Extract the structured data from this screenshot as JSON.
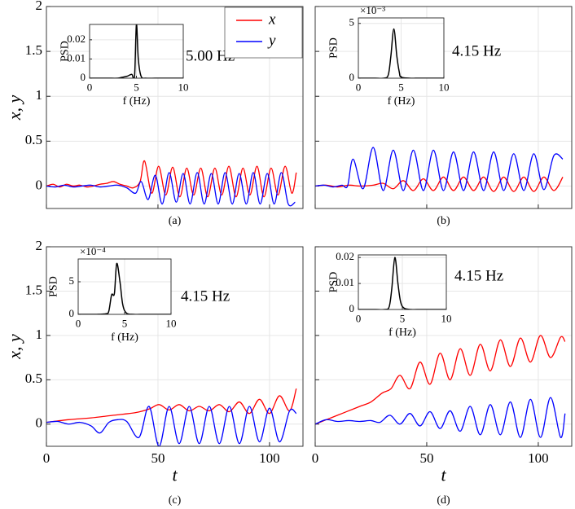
{
  "chart_data": [
    {
      "type": "line",
      "caption": "(a)",
      "annotation": "5.00 Hz",
      "ylabel": "x, y",
      "xlim": [
        0,
        115
      ],
      "xticks": [
        0,
        50,
        100
      ],
      "xtick_labels": false,
      "ylim": [
        -0.25,
        2
      ],
      "yticks": [
        0,
        0.5,
        1,
        1.5,
        2
      ],
      "grid": true,
      "legend": "top-right",
      "series": [
        {
          "name": "x",
          "color": "#ff0000",
          "x": [
            0,
            3,
            6,
            9,
            12,
            15,
            18,
            21,
            24,
            27,
            30,
            33,
            36,
            39,
            42,
            44,
            47.2,
            50.3,
            53.5,
            56.6,
            59.8,
            62.9,
            66,
            69.2,
            72.3,
            75.5,
            78.6,
            81.8,
            85,
            88.1,
            91.2,
            94.4,
            97.5,
            100.7,
            103.8,
            107,
            110,
            112
          ],
          "values": [
            0,
            0.02,
            -0.01,
            0.02,
            0,
            0.01,
            -0.01,
            0,
            0.02,
            0.03,
            0.05,
            0.02,
            0,
            -0.02,
            0.05,
            0.28,
            -0.08,
            0.22,
            -0.1,
            0.21,
            -0.12,
            0.2,
            -0.1,
            0.2,
            -0.12,
            0.2,
            -0.1,
            0.22,
            -0.12,
            0.2,
            -0.1,
            0.22,
            -0.12,
            0.2,
            -0.1,
            0.22,
            -0.08,
            0.15
          ]
        },
        {
          "name": "y",
          "color": "#0000ff",
          "x": [
            0,
            4,
            8,
            12,
            16,
            20,
            24,
            28,
            32,
            36,
            40,
            42.5,
            45.6,
            48.8,
            51.9,
            55,
            58.2,
            61.3,
            64.4,
            67.6,
            70.7,
            73.9,
            77,
            80.1,
            83.3,
            86.4,
            89.6,
            92.7,
            95.8,
            99,
            102.1,
            105.3,
            108.4,
            111.5
          ],
          "values": [
            0,
            -0.01,
            0.01,
            -0.01,
            0,
            0.01,
            -0.01,
            0,
            0.01,
            -0.02,
            -0.08,
            0.05,
            -0.15,
            0.12,
            -0.2,
            0.15,
            -0.18,
            0.14,
            -0.2,
            0.15,
            -0.2,
            0.14,
            -0.2,
            0.15,
            -0.2,
            0.14,
            -0.2,
            0.15,
            -0.2,
            0.14,
            -0.2,
            0.15,
            -0.2,
            -0.18
          ]
        }
      ],
      "inset": {
        "type": "line",
        "xlabel": "f (Hz)",
        "ylabel": "PSD",
        "xlim": [
          0,
          10
        ],
        "xticks": [
          0,
          5,
          10
        ],
        "ylim": [
          0,
          0.028
        ],
        "yticks": [
          0,
          0.01,
          0.02
        ],
        "grid": true,
        "series": [
          {
            "color": "#000000",
            "x": [
              0,
              1,
              2,
              3,
              3.5,
              4,
              4.5,
              4.8,
              5,
              5.2,
              5.5,
              6,
              7,
              8,
              9,
              10
            ],
            "values": [
              0,
              0,
              0,
              0,
              0.0005,
              0.001,
              0.002,
              0.001,
              0.028,
              0.01,
              0.001,
              0,
              0,
              0,
              0,
              0
            ]
          }
        ]
      }
    },
    {
      "type": "line",
      "caption": "(b)",
      "annotation": "4.15 Hz",
      "xlim": [
        0,
        115
      ],
      "xticks": [
        0,
        50,
        100
      ],
      "xtick_labels": false,
      "ylim": [
        -0.25,
        2
      ],
      "yticks": [
        0,
        0.5,
        1,
        1.5,
        2
      ],
      "ytick_labels": false,
      "grid": true,
      "series": [
        {
          "color": "#ff0000",
          "x": [
            0,
            5,
            10,
            15,
            20,
            26,
            30.5,
            35,
            39.5,
            44,
            48.5,
            53,
            57.5,
            62,
            66.5,
            71,
            75.5,
            80,
            84.5,
            89,
            93.5,
            98,
            102.5,
            107,
            111
          ],
          "values": [
            0,
            0.01,
            -0.01,
            0.01,
            0,
            0.01,
            0.03,
            -0.03,
            0.06,
            -0.05,
            0.08,
            -0.05,
            0.1,
            -0.05,
            0.1,
            -0.05,
            0.1,
            -0.06,
            0.1,
            -0.06,
            0.1,
            -0.06,
            0.1,
            -0.05,
            0.1
          ]
        },
        {
          "color": "#0000ff",
          "x": [
            0,
            4,
            8,
            12,
            14.5,
            17,
            21.5,
            26,
            30.5,
            35,
            39.5,
            44,
            48.5,
            53,
            57.5,
            62,
            66.5,
            71,
            75.5,
            80,
            84.5,
            89,
            93.5,
            98,
            102.5,
            107,
            111
          ],
          "values": [
            0,
            0.01,
            -0.01,
            0.01,
            0,
            0.3,
            -0.03,
            0.43,
            -0.05,
            0.4,
            -0.05,
            0.4,
            -0.05,
            0.4,
            -0.05,
            0.38,
            -0.05,
            0.38,
            -0.05,
            0.38,
            -0.05,
            0.36,
            -0.05,
            0.36,
            -0.04,
            0.34,
            0.3
          ]
        }
      ],
      "inset": {
        "type": "line",
        "xlabel": "f (Hz)",
        "ylabel": "PSD",
        "exponent": "×10⁻³",
        "xlim": [
          0,
          10
        ],
        "xticks": [
          0,
          5,
          10
        ],
        "ylim": [
          0,
          5.5
        ],
        "yticks": [
          0,
          5
        ],
        "grid": true,
        "series": [
          {
            "color": "#000000",
            "x": [
              0,
              1,
              2,
              3,
              3.5,
              3.8,
              4.15,
              4.5,
              4.8,
              5,
              6,
              7,
              8,
              9,
              10
            ],
            "values": [
              0,
              0,
              0,
              0,
              0.3,
              2,
              4.5,
              2,
              0.5,
              0.1,
              0,
              0,
              0,
              0,
              0
            ]
          }
        ]
      }
    },
    {
      "type": "line",
      "caption": "(c)",
      "annotation": "4.15 Hz",
      "ylabel": "x, y",
      "xlabel": "t",
      "xlim": [
        0,
        115
      ],
      "xticks": [
        0,
        50,
        100
      ],
      "ylim": [
        -0.25,
        2
      ],
      "yticks": [
        0,
        0.5,
        1,
        1.5,
        2
      ],
      "grid": true,
      "series": [
        {
          "color": "#ff0000",
          "x": [
            0,
            10,
            20,
            30,
            40,
            46,
            50.5,
            55,
            59.5,
            64,
            68.5,
            73,
            77.5,
            82,
            86.5,
            91,
            95.5,
            100,
            104.5,
            109,
            112
          ],
          "values": [
            0.02,
            0.05,
            0.07,
            0.1,
            0.13,
            0.17,
            0.22,
            0.16,
            0.22,
            0.15,
            0.2,
            0.15,
            0.22,
            0.14,
            0.25,
            0.12,
            0.28,
            0.12,
            0.32,
            0.15,
            0.4
          ]
        },
        {
          "color": "#0000ff",
          "x": [
            0,
            5,
            10,
            15,
            20,
            24,
            28,
            32,
            36,
            41.5,
            46,
            50.5,
            55,
            59.5,
            64,
            68.5,
            73,
            77.5,
            82,
            86.5,
            91,
            95.5,
            100,
            104.5,
            109,
            112
          ],
          "values": [
            0.02,
            0.03,
            0,
            0.02,
            -0.02,
            -0.1,
            0.02,
            0.05,
            0.03,
            -0.15,
            0.2,
            -0.25,
            0.2,
            -0.22,
            0.2,
            -0.22,
            0.2,
            -0.22,
            0.2,
            -0.22,
            0.2,
            -0.2,
            0.18,
            -0.2,
            0.15,
            0.12
          ]
        }
      ],
      "inset": {
        "type": "line",
        "xlabel": "f (Hz)",
        "ylabel": "PSD",
        "exponent": "×10⁻⁴",
        "xlim": [
          0,
          10
        ],
        "xticks": [
          0,
          5,
          10
        ],
        "ylim": [
          0,
          8.5
        ],
        "yticks": [
          0,
          5
        ],
        "grid": true,
        "series": [
          {
            "color": "#000000",
            "x": [
              0,
              1,
              2,
              3,
              3.3,
              3.6,
              3.9,
              4.15,
              4.5,
              4.8,
              5.2,
              6,
              7,
              8,
              9,
              10
            ],
            "values": [
              0,
              0,
              0,
              0.1,
              0.5,
              3,
              3.2,
              7.8,
              5,
              1.5,
              0.2,
              0,
              0,
              0,
              0,
              0
            ]
          }
        ]
      }
    },
    {
      "type": "line",
      "caption": "(d)",
      "annotation": "4.15 Hz",
      "xlabel": "t",
      "xlim": [
        0,
        115
      ],
      "xticks": [
        0,
        50,
        100
      ],
      "ylim": [
        -0.25,
        2
      ],
      "yticks": [
        0,
        0.5,
        1,
        1.5,
        2
      ],
      "ytick_labels": false,
      "grid": true,
      "series": [
        {
          "color": "#ff0000",
          "x": [
            0,
            5,
            10,
            15,
            20,
            25,
            30,
            34,
            38,
            42.5,
            47,
            51.5,
            56,
            60.5,
            65,
            69.5,
            74,
            78.5,
            83,
            87.5,
            92,
            96.5,
            101,
            105.5,
            110,
            112
          ],
          "values": [
            0,
            0.05,
            0.1,
            0.15,
            0.2,
            0.25,
            0.35,
            0.4,
            0.55,
            0.4,
            0.7,
            0.45,
            0.8,
            0.5,
            0.85,
            0.55,
            0.9,
            0.6,
            0.95,
            0.65,
            0.97,
            0.7,
            1.0,
            0.75,
            0.98,
            0.93
          ]
        },
        {
          "color": "#0000ff",
          "x": [
            0,
            5,
            10,
            15,
            20,
            25,
            29,
            33.5,
            38,
            42.5,
            47,
            51.5,
            56,
            60.5,
            65,
            69.5,
            74,
            78.5,
            83,
            87.5,
            92,
            96.5,
            101,
            105.5,
            110,
            112
          ],
          "values": [
            0,
            0.05,
            0.03,
            0.04,
            0.03,
            0.04,
            0.02,
            0.1,
            0,
            0.12,
            -0.02,
            0.14,
            -0.05,
            0.15,
            -0.08,
            0.2,
            -0.12,
            0.22,
            -0.12,
            0.25,
            -0.15,
            0.28,
            -0.15,
            0.3,
            -0.15,
            0.12
          ]
        }
      ],
      "inset": {
        "type": "line",
        "xlabel": "f (Hz)",
        "ylabel": "PSD",
        "xlim": [
          0,
          10
        ],
        "xticks": [
          0,
          5,
          10
        ],
        "ylim": [
          0,
          0.021
        ],
        "yticks": [
          0,
          0.01,
          0.02
        ],
        "grid": true,
        "series": [
          {
            "color": "#000000",
            "x": [
              0,
              1,
              2,
              3,
              3.5,
              3.8,
              4.15,
              4.5,
              4.8,
              5.2,
              6,
              7,
              8,
              9,
              10
            ],
            "values": [
              0,
              0,
              0,
              0,
              0.001,
              0.008,
              0.02,
              0.01,
              0.003,
              0.0005,
              0,
              0,
              0,
              0,
              0
            ]
          }
        ]
      }
    }
  ]
}
